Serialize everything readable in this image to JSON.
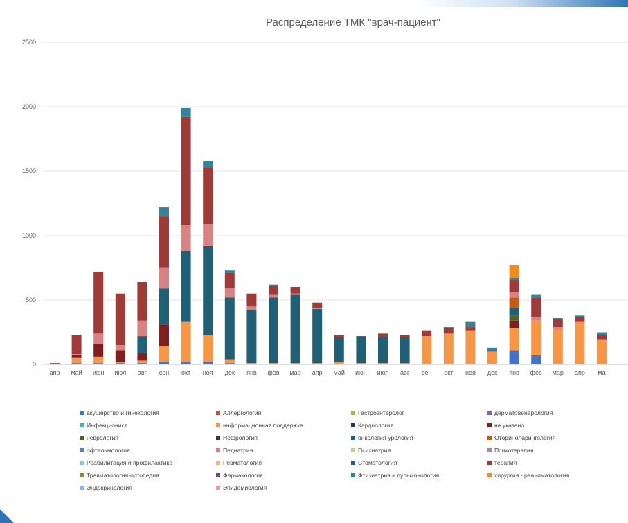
{
  "chart_data": {
    "type": "bar",
    "stacked": true,
    "title": "Распределение ТМК \"врач-пациент\"",
    "ylim": [
      0,
      2500
    ],
    "yticks": [
      0,
      500,
      1000,
      1500,
      2000,
      2500
    ],
    "grid": true,
    "legend_position": "bottom",
    "categories": [
      "апр",
      "май",
      "июн",
      "июл",
      "авг",
      "сен",
      "окт",
      "ноя",
      "дек",
      "янв",
      "фев",
      "мар",
      "апр",
      "май",
      "июн",
      "июл",
      "авг",
      "сен",
      "окт",
      "ноя",
      "дек",
      "янв",
      "фев",
      "мар",
      "апр",
      "ма"
    ],
    "series": [
      {
        "name": "акушерство и гинекология",
        "color": "#4472c4",
        "values": [
          0,
          10,
          10,
          10,
          10,
          20,
          20,
          20,
          10,
          0,
          0,
          0,
          0,
          0,
          0,
          0,
          0,
          0,
          0,
          0,
          0,
          110,
          70,
          0,
          0,
          0
        ]
      },
      {
        "name": "Аллергология",
        "color": "#c0504d",
        "values": [
          0,
          0,
          0,
          0,
          0,
          0,
          0,
          0,
          0,
          0,
          0,
          0,
          0,
          0,
          0,
          0,
          0,
          0,
          0,
          0,
          0,
          0,
          0,
          0,
          0,
          0
        ]
      },
      {
        "name": "Гастроэнтеролог",
        "color": "#9bbb59",
        "values": [
          0,
          0,
          0,
          0,
          0,
          0,
          0,
          0,
          0,
          0,
          0,
          0,
          0,
          0,
          0,
          0,
          0,
          0,
          0,
          0,
          0,
          0,
          0,
          0,
          0,
          0
        ]
      },
      {
        "name": "дерматовенерология",
        "color": "#8064a2",
        "values": [
          0,
          0,
          0,
          0,
          0,
          0,
          0,
          0,
          0,
          0,
          0,
          0,
          0,
          0,
          0,
          0,
          0,
          0,
          0,
          0,
          0,
          0,
          0,
          0,
          0,
          0
        ]
      },
      {
        "name": "Инфекционист",
        "color": "#4bacc6",
        "values": [
          0,
          0,
          0,
          0,
          0,
          0,
          0,
          0,
          0,
          0,
          0,
          0,
          0,
          0,
          0,
          0,
          0,
          0,
          0,
          0,
          0,
          0,
          0,
          0,
          0,
          0
        ]
      },
      {
        "name": "информационная поддержка",
        "color": "#f79646",
        "values": [
          0,
          40,
          50,
          10,
          20,
          120,
          310,
          210,
          30,
          10,
          10,
          10,
          10,
          20,
          10,
          10,
          10,
          220,
          240,
          260,
          100,
          170,
          270,
          270,
          330,
          190
        ]
      },
      {
        "name": "Кардиология",
        "color": "#1f3864",
        "values": [
          0,
          0,
          0,
          0,
          0,
          0,
          0,
          0,
          0,
          0,
          0,
          0,
          0,
          0,
          0,
          0,
          0,
          0,
          0,
          0,
          0,
          0,
          0,
          0,
          0,
          0
        ]
      },
      {
        "name": "не указано",
        "color": "#7f1f1f",
        "values": [
          5,
          20,
          100,
          90,
          60,
          170,
          0,
          0,
          0,
          0,
          0,
          0,
          0,
          0,
          0,
          0,
          0,
          0,
          0,
          0,
          0,
          60,
          0,
          0,
          0,
          0
        ]
      },
      {
        "name": "неврология",
        "color": "#4f6228",
        "values": [
          0,
          0,
          0,
          0,
          0,
          0,
          0,
          0,
          0,
          0,
          0,
          0,
          0,
          0,
          0,
          0,
          0,
          0,
          0,
          0,
          0,
          40,
          0,
          0,
          0,
          0
        ]
      },
      {
        "name": "Нефрология",
        "color": "#3f3151",
        "values": [
          0,
          0,
          0,
          0,
          0,
          0,
          0,
          0,
          0,
          0,
          0,
          0,
          0,
          0,
          0,
          0,
          0,
          0,
          0,
          0,
          0,
          0,
          0,
          0,
          0,
          0
        ]
      },
      {
        "name": "онкология-урология",
        "color": "#215f74",
        "values": [
          0,
          0,
          0,
          0,
          130,
          280,
          550,
          690,
          480,
          410,
          510,
          530,
          420,
          190,
          210,
          210,
          200,
          0,
          0,
          0,
          0,
          60,
          0,
          0,
          0,
          0
        ]
      },
      {
        "name": "Оториноларингология",
        "color": "#c55a11",
        "values": [
          0,
          0,
          0,
          0,
          0,
          0,
          0,
          0,
          0,
          0,
          0,
          0,
          0,
          0,
          0,
          0,
          0,
          0,
          0,
          0,
          0,
          80,
          0,
          0,
          0,
          0
        ]
      },
      {
        "name": "офтальмология",
        "color": "#5b7fc7",
        "values": [
          0,
          0,
          0,
          0,
          0,
          0,
          0,
          0,
          0,
          0,
          0,
          0,
          0,
          0,
          0,
          0,
          0,
          0,
          0,
          0,
          0,
          0,
          0,
          0,
          0,
          0
        ]
      },
      {
        "name": "Педиатрия",
        "color": "#d78384",
        "values": [
          0,
          10,
          80,
          40,
          120,
          160,
          200,
          170,
          70,
          30,
          20,
          10,
          10,
          0,
          0,
          0,
          0,
          0,
          0,
          0,
          0,
          40,
          30,
          20,
          0,
          0
        ]
      },
      {
        "name": "Психиатрия",
        "color": "#b9cf8e",
        "values": [
          0,
          0,
          0,
          0,
          0,
          0,
          0,
          0,
          0,
          0,
          0,
          0,
          0,
          0,
          0,
          0,
          0,
          0,
          0,
          0,
          0,
          0,
          0,
          0,
          0,
          0
        ]
      },
      {
        "name": "Психотерапия",
        "color": "#a08ac0",
        "values": [
          0,
          0,
          0,
          0,
          0,
          0,
          0,
          0,
          0,
          0,
          0,
          0,
          0,
          0,
          0,
          0,
          0,
          0,
          0,
          0,
          0,
          0,
          0,
          0,
          0,
          0
        ]
      },
      {
        "name": "Реабилитация и профилактика",
        "color": "#86c7d9",
        "values": [
          0,
          0,
          0,
          0,
          0,
          0,
          0,
          0,
          0,
          0,
          0,
          0,
          0,
          0,
          0,
          0,
          0,
          0,
          0,
          0,
          0,
          0,
          0,
          0,
          0,
          0
        ]
      },
      {
        "name": "Ревматология",
        "color": "#f5b27c",
        "values": [
          0,
          0,
          0,
          0,
          0,
          0,
          0,
          0,
          0,
          0,
          0,
          0,
          0,
          0,
          0,
          0,
          0,
          0,
          0,
          0,
          0,
          0,
          0,
          0,
          0,
          0
        ]
      },
      {
        "name": "Стоматология",
        "color": "#2f5597",
        "values": [
          0,
          0,
          0,
          0,
          0,
          0,
          0,
          0,
          0,
          0,
          0,
          0,
          0,
          0,
          0,
          0,
          0,
          0,
          0,
          0,
          0,
          0,
          0,
          0,
          0,
          0
        ]
      },
      {
        "name": "терапия",
        "color": "#9e3b38",
        "values": [
          5,
          150,
          480,
          400,
          300,
          400,
          840,
          440,
          120,
          100,
          70,
          50,
          40,
          20,
          0,
          20,
          20,
          40,
          40,
          30,
          10,
          100,
          150,
          60,
          40,
          40
        ]
      },
      {
        "name": "Травматология-ортопедия",
        "color": "#76923c",
        "values": [
          0,
          0,
          0,
          0,
          0,
          0,
          0,
          0,
          0,
          0,
          0,
          0,
          0,
          0,
          0,
          0,
          0,
          0,
          0,
          0,
          0,
          0,
          0,
          0,
          0,
          0
        ]
      },
      {
        "name": "Фармакология",
        "color": "#5f4a8b",
        "values": [
          0,
          0,
          0,
          0,
          0,
          0,
          0,
          0,
          0,
          0,
          0,
          0,
          0,
          0,
          0,
          0,
          0,
          0,
          0,
          0,
          0,
          0,
          0,
          0,
          0,
          0
        ]
      },
      {
        "name": "Фтизиатрия и пульмонология",
        "color": "#31849b",
        "values": [
          0,
          0,
          0,
          0,
          0,
          70,
          70,
          50,
          20,
          0,
          10,
          0,
          0,
          0,
          0,
          0,
          0,
          0,
          10,
          40,
          20,
          10,
          20,
          10,
          10,
          20
        ]
      },
      {
        "name": "хирургия - реаниматология",
        "color": "#f28a1d",
        "values": [
          0,
          0,
          0,
          0,
          0,
          0,
          0,
          0,
          0,
          0,
          0,
          0,
          0,
          0,
          0,
          0,
          0,
          0,
          0,
          0,
          0,
          100,
          0,
          0,
          0,
          0
        ]
      },
      {
        "name": "Эндокринология",
        "color": "#8eb4e3",
        "values": [
          0,
          0,
          0,
          0,
          0,
          0,
          0,
          0,
          0,
          0,
          0,
          0,
          0,
          0,
          0,
          0,
          0,
          0,
          0,
          0,
          0,
          0,
          0,
          0,
          0,
          0
        ]
      },
      {
        "name": "Эпидемиология",
        "color": "#e6a0a0",
        "values": [
          0,
          0,
          0,
          0,
          0,
          0,
          0,
          0,
          0,
          0,
          0,
          0,
          0,
          0,
          0,
          0,
          0,
          0,
          0,
          0,
          0,
          0,
          0,
          0,
          0,
          0
        ]
      }
    ]
  }
}
